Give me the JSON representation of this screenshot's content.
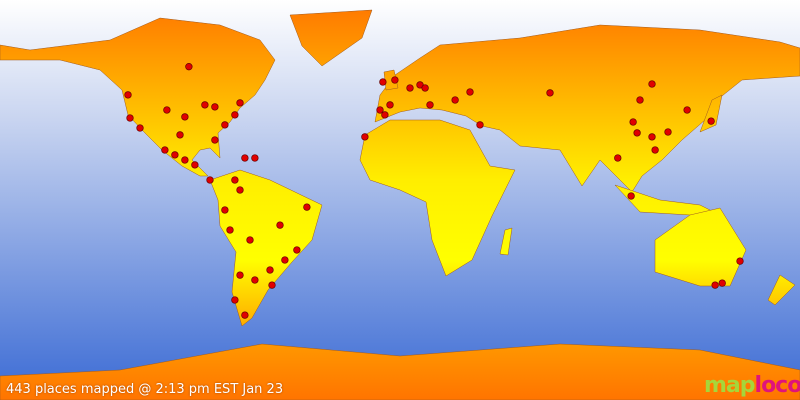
{
  "caption": "443 places mapped @ 2:13 pm EST Jan 23",
  "logo": {
    "part1": "map",
    "part2": "loco",
    "text": "maploco"
  },
  "colors": {
    "ocean_top": "#ffffff",
    "ocean_bottom": "#3a6ad4",
    "land_orange": "#ff7400",
    "land_yellow": "#ffff00",
    "marker": "#e00000"
  },
  "marker_icon": "red-dot",
  "places": [
    [
      -95,
      60
    ],
    [
      -122.4,
      47.3
    ],
    [
      -121.5,
      36.9
    ],
    [
      -117,
      32.4
    ],
    [
      -104.9,
      40.5
    ],
    [
      -96.8,
      37.4
    ],
    [
      -87.8,
      42.8
    ],
    [
      -83.3,
      41.9
    ],
    [
      -72,
      43.7
    ],
    [
      -74.3,
      38.3
    ],
    [
      -78.8,
      33.8
    ],
    [
      -83.3,
      27
    ],
    [
      -99,
      29.3
    ],
    [
      -105.8,
      22.5
    ],
    [
      -101.3,
      20.3
    ],
    [
      -96.8,
      18
    ],
    [
      -92.3,
      15.8
    ],
    [
      -85.5,
      9
    ],
    [
      -69.8,
      18.9
    ],
    [
      -65.3,
      18.9
    ],
    [
      -74.3,
      9
    ],
    [
      -72,
      4.5
    ],
    [
      -78.8,
      -4.5
    ],
    [
      -76.5,
      -13.5
    ],
    [
      -67.5,
      -18
    ],
    [
      -54,
      -11.3
    ],
    [
      -41.9,
      -3.2
    ],
    [
      -46.4,
      -22.5
    ],
    [
      -51.8,
      -27
    ],
    [
      -58.5,
      -31.5
    ],
    [
      -65.3,
      -36
    ],
    [
      -72,
      -33.8
    ],
    [
      -74.3,
      -45
    ],
    [
      -69.8,
      -51.8
    ],
    [
      -57.6,
      -38.3
    ],
    [
      -15.8,
      28.4
    ],
    [
      -9,
      40.5
    ],
    [
      -4.5,
      42.8
    ],
    [
      -6.8,
      38.3
    ],
    [
      -7.7,
      53.1
    ],
    [
      -2.3,
      54
    ],
    [
      4.5,
      50.4
    ],
    [
      9,
      51.8
    ],
    [
      13.5,
      42.8
    ],
    [
      11.3,
      50.4
    ],
    [
      24.8,
      45
    ],
    [
      31.5,
      48.6
    ],
    [
      36,
      33.8
    ],
    [
      67.5,
      48.2
    ],
    [
      113.4,
      52.2
    ],
    [
      108,
      45
    ],
    [
      104.9,
      35.1
    ],
    [
      106.7,
      30.2
    ],
    [
      113.4,
      28.4
    ],
    [
      114.8,
      22.5
    ],
    [
      120.6,
      30.6
    ],
    [
      129.2,
      40.5
    ],
    [
      140,
      35.5
    ],
    [
      98,
      18.9
    ],
    [
      104,
      1.8
    ],
    [
      153,
      -27.5
    ],
    [
      141.8,
      -38.3
    ],
    [
      145,
      -37.4
    ]
  ]
}
